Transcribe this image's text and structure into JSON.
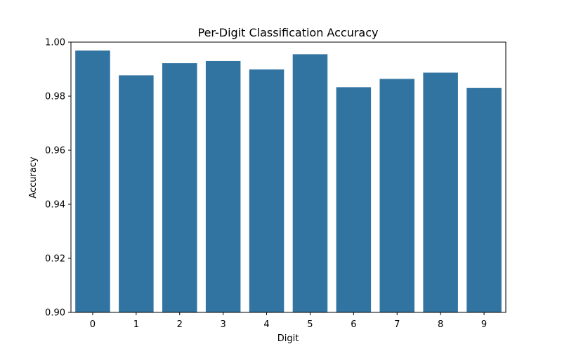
{
  "chart_data": {
    "type": "bar",
    "title": "Per-Digit Classification Accuracy",
    "xlabel": "Digit",
    "ylabel": "Accuracy",
    "categories": [
      "0",
      "1",
      "2",
      "3",
      "4",
      "5",
      "6",
      "7",
      "8",
      "9"
    ],
    "values": [
      0.9969,
      0.9877,
      0.9922,
      0.993,
      0.9899,
      0.9955,
      0.9833,
      0.9864,
      0.9887,
      0.9831
    ],
    "ylim": [
      0.9,
      1.0
    ],
    "yticks": [
      "0.90",
      "0.92",
      "0.94",
      "0.96",
      "0.98",
      "1.00"
    ],
    "bar_color": "#3274a1",
    "grid": false,
    "legend": "none"
  }
}
